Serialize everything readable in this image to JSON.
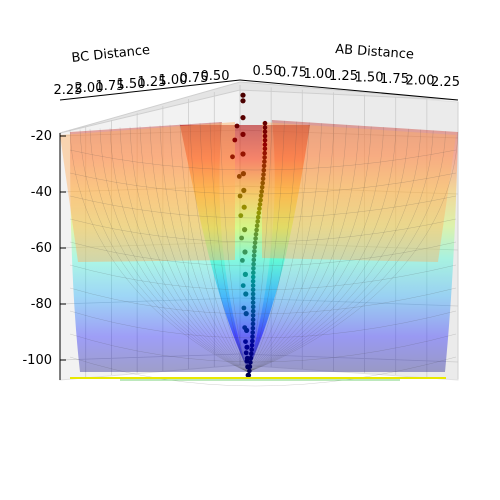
{
  "chart_data": {
    "type": "surface3d",
    "title": "",
    "xlabel": "AB Distance",
    "ylabel": "BC Distance",
    "zlabel": "",
    "xticks": [
      "0.50",
      "0.75",
      "1.00",
      "1.25",
      "1.50",
      "1.75",
      "2.00",
      "2.25"
    ],
    "yticks": [
      "0.50",
      "0.75",
      "1.00",
      "1.25",
      "1.50",
      "1.75",
      "2.00",
      "2.25"
    ],
    "zticks": [
      "-20",
      "-40",
      "-60",
      "-80",
      "-100"
    ],
    "xlim": [
      0.5,
      2.25
    ],
    "ylim": [
      0.5,
      2.25
    ],
    "zlim": [
      -105,
      -10
    ],
    "colormap": "jet",
    "surface_alpha": 0.35,
    "grid": true,
    "trajectory": {
      "name": "",
      "color": "#000000",
      "path_z": [
        -4,
        -6,
        -12,
        -18,
        -25,
        -32,
        -38,
        -44,
        -52,
        -60,
        -68,
        -75,
        -82,
        -88,
        -94,
        -98,
        -101,
        -104
      ],
      "branch_z": [
        -15,
        -20,
        -26,
        -33,
        -40,
        -47,
        -55,
        -63,
        -72,
        -80,
        -87,
        -92,
        -96,
        -99
      ]
    }
  }
}
